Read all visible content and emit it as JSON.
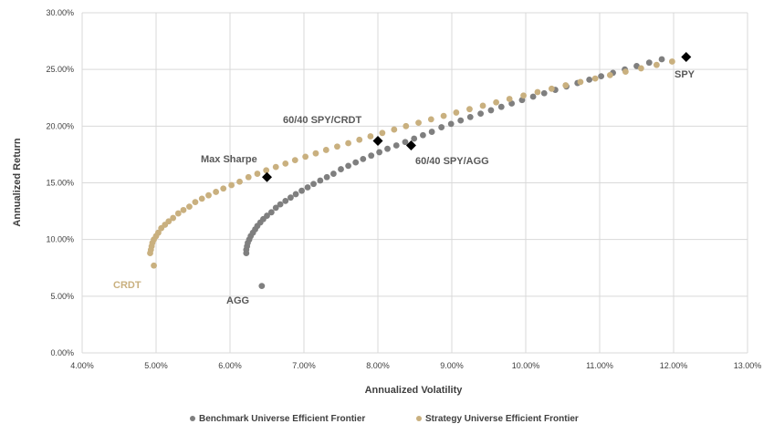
{
  "chart_data": {
    "type": "scatter",
    "title": "",
    "xlabel": "Annualized Volatility",
    "ylabel": "Annualized Return",
    "xlim": [
      4.0,
      13.0
    ],
    "ylim": [
      0.0,
      30.0
    ],
    "x_ticks": [
      "4.00%",
      "5.00%",
      "6.00%",
      "7.00%",
      "8.00%",
      "9.00%",
      "10.00%",
      "11.00%",
      "12.00%",
      "13.00%"
    ],
    "y_ticks": [
      "0.00%",
      "5.00%",
      "10.00%",
      "15.00%",
      "20.00%",
      "25.00%",
      "30.00%"
    ],
    "grid": "vertical-and-horizontal",
    "legend_position": "bottom",
    "series": [
      {
        "name": "Benchmark Universe Efficient Frontier",
        "color": "#7f7f7f",
        "x": [
          6.22,
          6.22,
          6.23,
          6.24,
          6.26,
          6.28,
          6.31,
          6.34,
          6.37,
          6.41,
          6.45,
          6.5,
          6.56,
          6.62,
          6.68,
          6.75,
          6.82,
          6.89,
          6.97,
          7.05,
          7.13,
          7.22,
          7.31,
          7.4,
          7.5,
          7.6,
          7.7,
          7.8,
          7.91,
          8.02,
          8.13,
          8.25,
          8.37,
          8.49,
          8.61,
          8.73,
          8.86,
          8.99,
          9.12,
          9.25,
          9.39,
          9.53,
          9.67,
          9.81,
          9.95,
          10.1,
          10.25,
          10.4,
          10.55,
          10.7,
          10.86,
          11.02,
          11.18,
          11.34,
          11.5,
          11.67,
          11.84
        ],
        "y": [
          8.8,
          9.1,
          9.4,
          9.7,
          10.0,
          10.3,
          10.6,
          10.9,
          11.2,
          11.5,
          11.8,
          12.1,
          12.4,
          12.8,
          13.1,
          13.4,
          13.7,
          14.0,
          14.3,
          14.6,
          14.9,
          15.2,
          15.5,
          15.8,
          16.2,
          16.5,
          16.8,
          17.1,
          17.4,
          17.7,
          18.0,
          18.3,
          18.6,
          18.9,
          19.2,
          19.5,
          19.9,
          20.2,
          20.5,
          20.8,
          21.1,
          21.4,
          21.7,
          22.0,
          22.3,
          22.6,
          22.9,
          23.2,
          23.5,
          23.8,
          24.1,
          24.4,
          24.7,
          25.0,
          25.3,
          25.6,
          25.9
        ]
      },
      {
        "name": "Strategy Universe Efficient Frontier",
        "color": "#c9b07f",
        "x": [
          4.97,
          4.92,
          4.93,
          4.94,
          4.95,
          4.97,
          5.0,
          5.03,
          5.07,
          5.12,
          5.17,
          5.23,
          5.3,
          5.37,
          5.45,
          5.53,
          5.62,
          5.71,
          5.81,
          5.91,
          6.02,
          6.13,
          6.25,
          6.37,
          6.49,
          6.62,
          6.75,
          6.88,
          7.02,
          7.16,
          7.3,
          7.45,
          7.6,
          7.75,
          7.9,
          8.06,
          8.22,
          8.38,
          8.55,
          8.72,
          8.89,
          9.06,
          9.24,
          9.42,
          9.6,
          9.78,
          9.97,
          10.16,
          10.35,
          10.54,
          10.74,
          10.94,
          11.14,
          11.35,
          11.56,
          11.77,
          11.98
        ],
        "y": [
          7.7,
          8.8,
          9.1,
          9.4,
          9.7,
          10.0,
          10.3,
          10.6,
          11.0,
          11.3,
          11.6,
          11.9,
          12.3,
          12.6,
          12.9,
          13.3,
          13.6,
          13.9,
          14.2,
          14.5,
          14.8,
          15.1,
          15.5,
          15.8,
          16.1,
          16.4,
          16.7,
          17.0,
          17.3,
          17.6,
          17.9,
          18.2,
          18.5,
          18.8,
          19.1,
          19.4,
          19.7,
          20.0,
          20.3,
          20.6,
          20.9,
          21.2,
          21.5,
          21.8,
          22.1,
          22.4,
          22.7,
          23.0,
          23.3,
          23.6,
          23.9,
          24.2,
          24.5,
          24.8,
          25.1,
          25.4,
          25.7
        ]
      }
    ],
    "highlight_points": [
      {
        "label": "SPY",
        "x": 12.17,
        "y": 26.1
      },
      {
        "label": "60/40 SPY/CRDT",
        "x": 8.0,
        "y": 18.7
      },
      {
        "label": "60/40 SPY/AGG",
        "x": 8.45,
        "y": 18.3
      },
      {
        "label": "Max Sharpe",
        "x": 6.5,
        "y": 15.5
      }
    ],
    "annotations": [
      {
        "text": "SPY",
        "color": "#595959"
      },
      {
        "text": "60/40 SPY/CRDT",
        "color": "#595959"
      },
      {
        "text": "60/40 SPY/AGG",
        "color": "#595959"
      },
      {
        "text": "Max Sharpe",
        "color": "#595959"
      },
      {
        "text": "CRDT",
        "color": "#c9b07f"
      },
      {
        "text": "AGG",
        "color": "#595959"
      }
    ],
    "standalone_points": [
      {
        "label": "AGG",
        "x": 6.43,
        "y": 5.9,
        "color": "#7f7f7f"
      }
    ]
  }
}
